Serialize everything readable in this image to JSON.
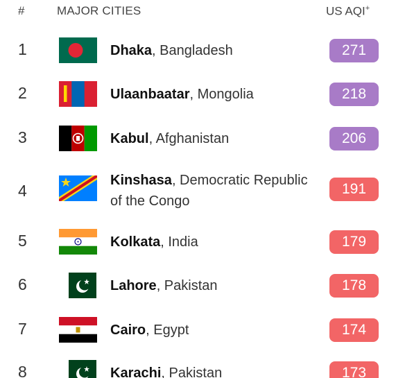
{
  "header": {
    "rank": "#",
    "city": "MAJOR CITIES",
    "aqi": "US AQI",
    "aqi_sup": "+"
  },
  "colors": {
    "very_unhealthy": "#a87bc7",
    "unhealthy": "#f26566"
  },
  "rows": [
    {
      "rank": "1",
      "city": "Dhaka",
      "country": ", Bangladesh",
      "aqi": "271",
      "flag": "bangladesh-flag-icon",
      "level": "very_unhealthy"
    },
    {
      "rank": "2",
      "city": "Ulaanbaatar",
      "country": ", Mongolia",
      "aqi": "218",
      "flag": "mongolia-flag-icon",
      "level": "very_unhealthy"
    },
    {
      "rank": "3",
      "city": "Kabul",
      "country": ", Afghanistan",
      "aqi": "206",
      "flag": "afghanistan-flag-icon",
      "level": "very_unhealthy"
    },
    {
      "rank": "4",
      "city": "Kinshasa",
      "country": ", Democratic Republic of the Congo",
      "aqi": "191",
      "flag": "dr-congo-flag-icon",
      "level": "unhealthy"
    },
    {
      "rank": "5",
      "city": "Kolkata",
      "country": ", India",
      "aqi": "179",
      "flag": "india-flag-icon",
      "level": "unhealthy"
    },
    {
      "rank": "6",
      "city": "Lahore",
      "country": ", Pakistan",
      "aqi": "178",
      "flag": "pakistan-flag-icon",
      "level": "unhealthy"
    },
    {
      "rank": "7",
      "city": "Cairo",
      "country": ", Egypt",
      "aqi": "174",
      "flag": "egypt-flag-icon",
      "level": "unhealthy"
    },
    {
      "rank": "8",
      "city": "Karachi",
      "country": ", Pakistan",
      "aqi": "173",
      "flag": "pakistan-flag-icon",
      "level": "unhealthy"
    }
  ]
}
